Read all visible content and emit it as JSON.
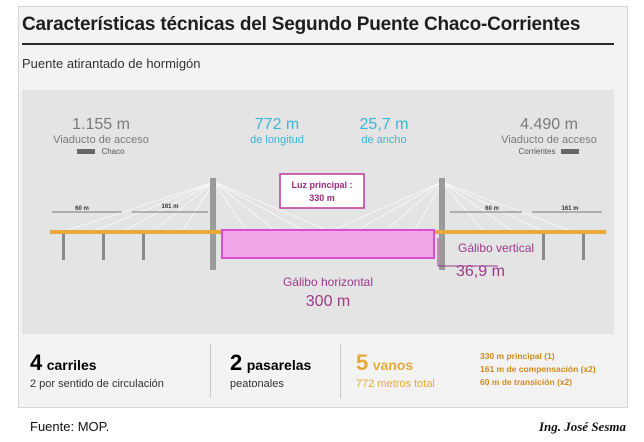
{
  "title": "Características técnicas del Segundo Puente Chaco-Corrientes",
  "subtitle": "Puente atirantado de hormigón",
  "stats": {
    "left": {
      "value": "1.155 m",
      "label": "Viaducto de acceso",
      "side": "Chaco"
    },
    "length": {
      "value": "772 m",
      "label": "de longitud"
    },
    "width": {
      "value": "25,7 m",
      "label": "de ancho"
    },
    "right": {
      "value": "4.490 m",
      "label": "Viaducto de acceso",
      "side": "Corrientes"
    }
  },
  "diagram": {
    "main_span_label": "Luz principal :",
    "main_span_value": "330 m",
    "dim_left_60": "60 m",
    "dim_left_161": "161 m",
    "dim_right_60": "60 m",
    "dim_right_161": "161 m",
    "vertical_label": "Gálibo vertical",
    "vertical_value": "36,9 m",
    "horizontal_label": "Gálibo horizontal",
    "horizontal_value": "300 m",
    "colors": {
      "deck": "#e7a93a",
      "clearance": "#d94fd0",
      "clearance_fill": "#f2a7ea",
      "label_box": "#c0369c",
      "purple_text": "#9a3a8a"
    }
  },
  "facts": {
    "lanes": {
      "number": "4",
      "unit": "carriles",
      "desc": "2 por sentido de circulación"
    },
    "walkways": {
      "number": "2",
      "unit": "pasarelas",
      "desc": "peatonales"
    },
    "spans": {
      "number": "5",
      "unit": "vanos",
      "desc": "772 metros total"
    },
    "span_list": [
      "330 m principal (1)",
      "161 m de compensación (x2)",
      "60 m de transición (x2)"
    ]
  },
  "footer": {
    "source": "Fuente: MOP.",
    "author": "Ing. José Sesma"
  }
}
